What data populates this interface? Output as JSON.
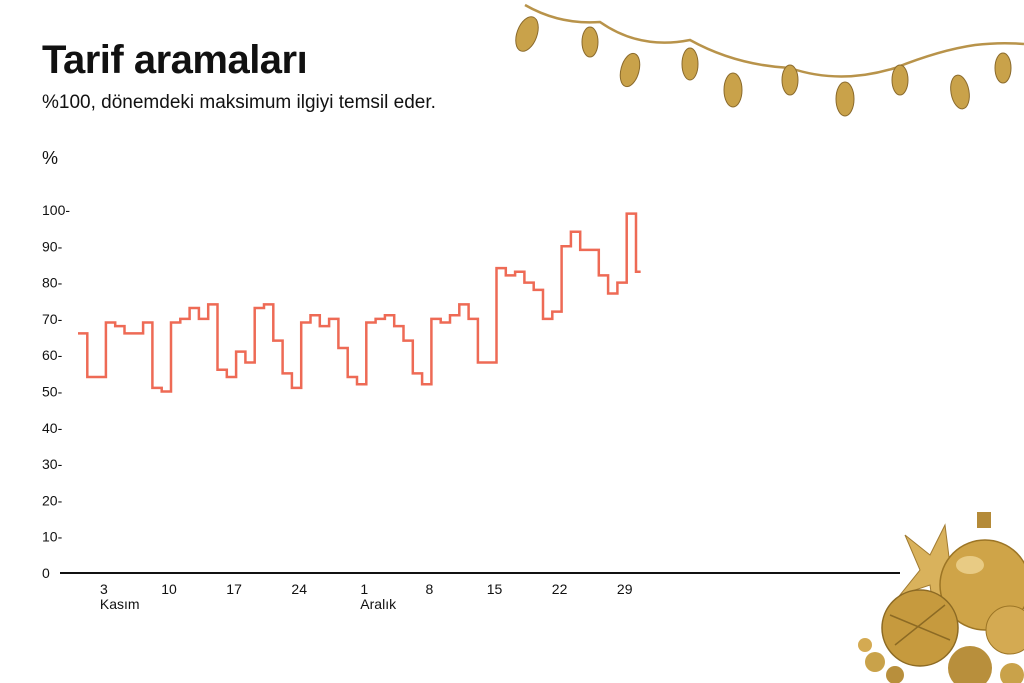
{
  "title": "Tarif aramaları",
  "subtitle": "%100, dönemdeki maksimum ilgiyi temsil eder.",
  "colors": {
    "line": "#ee6a55",
    "axis": "#111111",
    "gold": "#c9a24a"
  },
  "chart_data": {
    "type": "line",
    "step": true,
    "ylabel": "%",
    "ylim": [
      0,
      100
    ],
    "y_ticks": [
      "0",
      "10-",
      "20-",
      "30-",
      "40-",
      "50-",
      "60-",
      "70-",
      "80-",
      "90-",
      "100-"
    ],
    "x_ticks": [
      {
        "day": 3,
        "label": "3",
        "sublabel": "Kasım"
      },
      {
        "day": 10,
        "label": "10",
        "sublabel": ""
      },
      {
        "day": 17,
        "label": "17",
        "sublabel": ""
      },
      {
        "day": 24,
        "label": "24",
        "sublabel": ""
      },
      {
        "day": 31,
        "label": "1",
        "sublabel": "Aralık"
      },
      {
        "day": 38,
        "label": "8",
        "sublabel": ""
      },
      {
        "day": 45,
        "label": "15",
        "sublabel": ""
      },
      {
        "day": 52,
        "label": "22",
        "sublabel": ""
      },
      {
        "day": 59,
        "label": "29",
        "sublabel": ""
      }
    ],
    "series": [
      {
        "values": [
          66,
          54,
          54,
          69,
          68,
          66,
          66,
          69,
          51,
          50,
          69,
          70,
          73,
          70,
          74,
          56,
          54,
          61,
          58,
          73,
          74,
          64,
          55,
          51,
          69,
          71,
          68,
          70,
          62,
          54,
          52,
          69,
          70,
          71,
          68,
          64,
          55,
          52,
          70,
          69,
          71,
          74,
          70,
          58,
          58,
          84,
          82,
          83,
          80,
          78,
          70,
          72,
          90,
          94,
          89,
          89,
          82,
          77,
          80,
          99,
          83
        ]
      }
    ]
  }
}
